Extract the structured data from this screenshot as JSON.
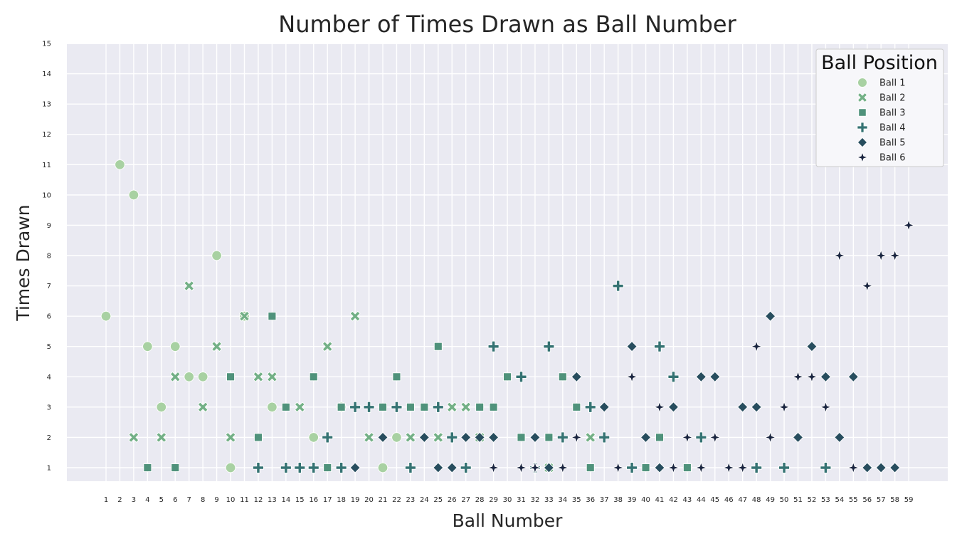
{
  "chart_data": {
    "type": "scatter",
    "title": "Number of Times Drawn as Ball Number",
    "xlabel": "Ball Number",
    "ylabel": "Times Drawn",
    "xticks": [
      1,
      2,
      3,
      4,
      5,
      6,
      7,
      8,
      9,
      10,
      11,
      12,
      13,
      14,
      15,
      16,
      17,
      18,
      19,
      20,
      21,
      22,
      23,
      24,
      25,
      26,
      27,
      28,
      29,
      30,
      31,
      32,
      33,
      34,
      35,
      36,
      37,
      38,
      39,
      40,
      41,
      42,
      43,
      44,
      45,
      46,
      47,
      48,
      49,
      50,
      51,
      52,
      53,
      54,
      55,
      56,
      57,
      58,
      59
    ],
    "yticks": [
      1,
      2,
      3,
      4,
      5,
      6,
      7,
      8,
      9,
      10,
      11,
      12,
      13,
      14,
      15
    ],
    "ylim": [
      0.5,
      15
    ],
    "grid": true,
    "legend": {
      "title": "Ball Position",
      "placement": "top-right"
    },
    "series": [
      {
        "name": "Ball 1",
        "marker": "circle",
        "color": "#a8d1a2",
        "points": [
          [
            1,
            6
          ],
          [
            2,
            11
          ],
          [
            3,
            10
          ],
          [
            4,
            5
          ],
          [
            5,
            3
          ],
          [
            6,
            5
          ],
          [
            7,
            4
          ],
          [
            8,
            4
          ],
          [
            9,
            8
          ],
          [
            10,
            1
          ],
          [
            11,
            6
          ],
          [
            13,
            3
          ],
          [
            16,
            2
          ],
          [
            18,
            3
          ],
          [
            21,
            1
          ],
          [
            22,
            2
          ]
        ]
      },
      {
        "name": "Ball 2",
        "marker": "x",
        "color": "#73b086",
        "points": [
          [
            3,
            2
          ],
          [
            5,
            2
          ],
          [
            6,
            4
          ],
          [
            7,
            7
          ],
          [
            8,
            3
          ],
          [
            9,
            5
          ],
          [
            10,
            2
          ],
          [
            11,
            6
          ],
          [
            12,
            4
          ],
          [
            13,
            4
          ],
          [
            15,
            3
          ],
          [
            17,
            5
          ],
          [
            19,
            6
          ],
          [
            20,
            2
          ],
          [
            23,
            2
          ],
          [
            25,
            2
          ],
          [
            26,
            3
          ],
          [
            27,
            3
          ],
          [
            28,
            2
          ],
          [
            33,
            1
          ],
          [
            36,
            2
          ]
        ]
      },
      {
        "name": "Ball 3",
        "marker": "square",
        "color": "#4f927b",
        "points": [
          [
            4,
            1
          ],
          [
            6,
            1
          ],
          [
            10,
            4
          ],
          [
            12,
            2
          ],
          [
            13,
            6
          ],
          [
            14,
            3
          ],
          [
            16,
            4
          ],
          [
            17,
            1
          ],
          [
            18,
            3
          ],
          [
            21,
            3
          ],
          [
            22,
            4
          ],
          [
            23,
            3
          ],
          [
            24,
            3
          ],
          [
            25,
            5
          ],
          [
            28,
            3
          ],
          [
            29,
            3
          ],
          [
            30,
            4
          ],
          [
            31,
            2
          ],
          [
            33,
            2
          ],
          [
            34,
            4
          ],
          [
            35,
            3
          ],
          [
            36,
            1
          ],
          [
            40,
            1
          ],
          [
            41,
            2
          ],
          [
            43,
            1
          ]
        ]
      },
      {
        "name": "Ball 4",
        "marker": "plus",
        "color": "#357373",
        "points": [
          [
            12,
            1
          ],
          [
            14,
            1
          ],
          [
            15,
            1
          ],
          [
            16,
            1
          ],
          [
            17,
            2
          ],
          [
            18,
            1
          ],
          [
            19,
            3
          ],
          [
            20,
            3
          ],
          [
            22,
            3
          ],
          [
            23,
            1
          ],
          [
            25,
            3
          ],
          [
            26,
            2
          ],
          [
            27,
            1
          ],
          [
            29,
            5
          ],
          [
            31,
            4
          ],
          [
            32,
            1
          ],
          [
            33,
            5
          ],
          [
            34,
            2
          ],
          [
            36,
            3
          ],
          [
            37,
            2
          ],
          [
            38,
            7
          ],
          [
            39,
            1
          ],
          [
            41,
            5
          ],
          [
            42,
            4
          ],
          [
            44,
            2
          ],
          [
            48,
            1
          ],
          [
            50,
            1
          ],
          [
            53,
            1
          ]
        ]
      },
      {
        "name": "Ball 5",
        "marker": "diamond",
        "color": "#274d5e",
        "points": [
          [
            19,
            1
          ],
          [
            21,
            2
          ],
          [
            24,
            2
          ],
          [
            25,
            1
          ],
          [
            26,
            1
          ],
          [
            27,
            2
          ],
          [
            28,
            2
          ],
          [
            29,
            2
          ],
          [
            32,
            2
          ],
          [
            33,
            1
          ],
          [
            35,
            4
          ],
          [
            37,
            3
          ],
          [
            39,
            5
          ],
          [
            40,
            2
          ],
          [
            41,
            1
          ],
          [
            42,
            3
          ],
          [
            44,
            4
          ],
          [
            45,
            4
          ],
          [
            47,
            3
          ],
          [
            48,
            3
          ],
          [
            49,
            6
          ],
          [
            51,
            2
          ],
          [
            52,
            5
          ],
          [
            53,
            4
          ],
          [
            54,
            2
          ],
          [
            55,
            4
          ],
          [
            56,
            1
          ],
          [
            57,
            1
          ],
          [
            58,
            1
          ]
        ]
      },
      {
        "name": "Ball 6",
        "marker": "star4",
        "color": "#1a2540",
        "points": [
          [
            29,
            1
          ],
          [
            31,
            1
          ],
          [
            32,
            1
          ],
          [
            34,
            1
          ],
          [
            35,
            2
          ],
          [
            38,
            1
          ],
          [
            39,
            4
          ],
          [
            41,
            3
          ],
          [
            42,
            1
          ],
          [
            43,
            2
          ],
          [
            44,
            1
          ],
          [
            45,
            2
          ],
          [
            46,
            1
          ],
          [
            47,
            1
          ],
          [
            48,
            5
          ],
          [
            49,
            2
          ],
          [
            50,
            3
          ],
          [
            51,
            4
          ],
          [
            52,
            4
          ],
          [
            53,
            3
          ],
          [
            54,
            8
          ],
          [
            55,
            1
          ],
          [
            56,
            7
          ],
          [
            57,
            8
          ],
          [
            58,
            8
          ],
          [
            59,
            9
          ]
        ]
      }
    ]
  }
}
